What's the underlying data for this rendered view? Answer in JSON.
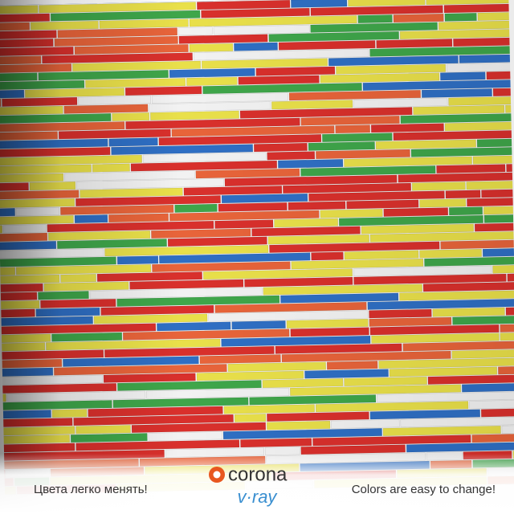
{
  "logos": {
    "corona": "corona",
    "vray": "v·ray"
  },
  "captions": {
    "left": "Цвета легко менять!",
    "right": "Colors are easy to change!"
  }
}
